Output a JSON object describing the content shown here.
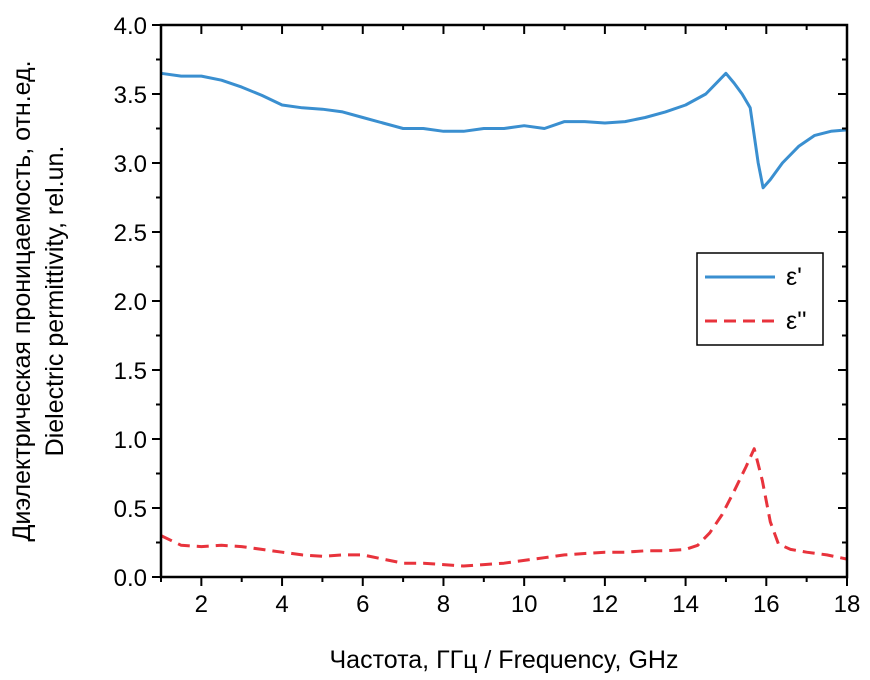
{
  "chart_data": {
    "type": "line",
    "title": "",
    "xlabel": "Частота, ГГц / Frequency, GHz",
    "ylabel_lines": [
      "Диэлектрическая проницаемость, отн.ед.",
      "Dielectric permittivity, rel.un."
    ],
    "xlim": [
      1,
      18
    ],
    "ylim": [
      0,
      4.0
    ],
    "xticks": [
      2,
      4,
      6,
      8,
      10,
      12,
      14,
      16,
      18
    ],
    "yticks": [
      "0.0",
      "0.5",
      "1.0",
      "1.5",
      "2.0",
      "2.5",
      "3.0",
      "3.5",
      "4.0"
    ],
    "grid": false,
    "legend_position": "right",
    "series": [
      {
        "name": "ε'",
        "color": "#3a8fd0",
        "style": "solid",
        "x": [
          1,
          1.5,
          2,
          2.5,
          3,
          3.5,
          4,
          4.5,
          5,
          5.5,
          6,
          6.5,
          7,
          7.5,
          8,
          8.5,
          9,
          9.5,
          10,
          10.5,
          11,
          11.5,
          12,
          12.5,
          13,
          13.5,
          14,
          14.5,
          15,
          15.2,
          15.4,
          15.6,
          15.8,
          15.92,
          16.1,
          16.4,
          16.8,
          17.2,
          17.6,
          18
        ],
        "y": [
          3.65,
          3.63,
          3.63,
          3.6,
          3.55,
          3.49,
          3.42,
          3.4,
          3.39,
          3.37,
          3.33,
          3.29,
          3.25,
          3.25,
          3.23,
          3.23,
          3.25,
          3.25,
          3.27,
          3.25,
          3.3,
          3.3,
          3.29,
          3.3,
          3.33,
          3.37,
          3.42,
          3.5,
          3.65,
          3.58,
          3.5,
          3.4,
          3.0,
          2.82,
          2.88,
          3.0,
          3.12,
          3.2,
          3.23,
          3.24
        ]
      },
      {
        "name": "ε''",
        "color": "#e8333c",
        "style": "dashed",
        "x": [
          1,
          1.5,
          2,
          2.5,
          3,
          3.5,
          4,
          4.5,
          5,
          5.5,
          6,
          6.5,
          7,
          7.5,
          8,
          8.5,
          9,
          9.5,
          10,
          10.5,
          11,
          11.5,
          12,
          12.5,
          13,
          13.5,
          14,
          14.3,
          14.6,
          14.9,
          15.2,
          15.5,
          15.7,
          15.9,
          16.1,
          16.3,
          16.6,
          17,
          17.5,
          18
        ],
        "y": [
          0.3,
          0.23,
          0.22,
          0.23,
          0.22,
          0.2,
          0.18,
          0.16,
          0.15,
          0.16,
          0.16,
          0.13,
          0.1,
          0.1,
          0.09,
          0.08,
          0.09,
          0.1,
          0.12,
          0.14,
          0.16,
          0.17,
          0.18,
          0.18,
          0.19,
          0.19,
          0.2,
          0.23,
          0.32,
          0.45,
          0.62,
          0.8,
          0.93,
          0.7,
          0.4,
          0.24,
          0.2,
          0.18,
          0.16,
          0.13
        ]
      }
    ]
  }
}
